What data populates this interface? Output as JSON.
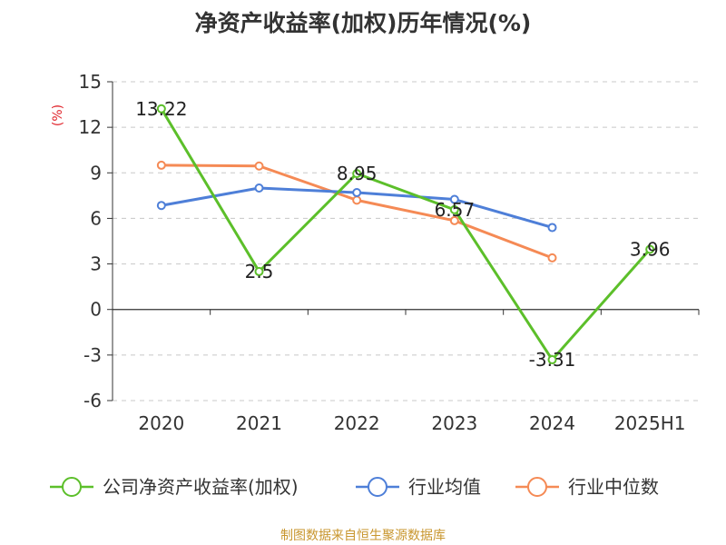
{
  "chart_data": {
    "type": "line",
    "title": "净资产收益率(加权)历年情况(%)",
    "ylabel": "(%)",
    "categories": [
      "2020",
      "2021",
      "2022",
      "2023",
      "2024",
      "2025H1"
    ],
    "y_ticks": [
      "15",
      "12",
      "9",
      "6",
      "3",
      "0",
      "-3",
      "-6"
    ],
    "ylim": [
      -6,
      15
    ],
    "grid": true,
    "legend_position": "bottom",
    "series": [
      {
        "name": "公司净资产收益率(加权)",
        "color": "#5cbf2a",
        "values": [
          13.22,
          2.5,
          8.95,
          6.57,
          -3.31,
          3.96
        ],
        "labels": [
          "13.22",
          "2.5",
          "8.95",
          "6.57",
          "-3.31",
          "3.96"
        ]
      },
      {
        "name": "行业均值",
        "color": "#4e7fd8",
        "values": [
          6.85,
          8.0,
          7.7,
          7.25,
          5.4,
          null
        ]
      },
      {
        "name": "行业中位数",
        "color": "#f58a55",
        "values": [
          9.5,
          9.45,
          7.2,
          5.85,
          3.4,
          null
        ]
      }
    ]
  },
  "source": "制图数据来自恒生聚源数据库"
}
